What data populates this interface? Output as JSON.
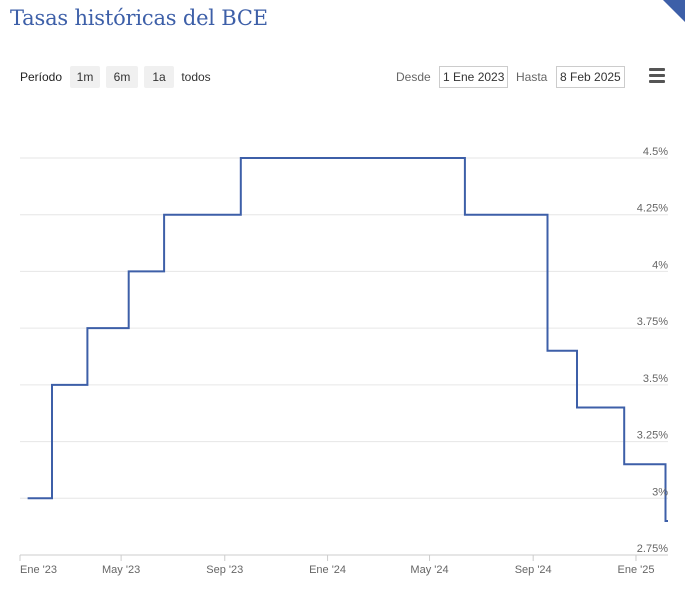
{
  "title": "Tasas históricas del BCE",
  "toolbar": {
    "period_label": "Período",
    "buttons": [
      "1m",
      "6m",
      "1a",
      "todos"
    ],
    "from_label": "Desde",
    "from_value": "1 Ene 2023",
    "to_label": "Hasta",
    "to_value": "8 Feb 2025"
  },
  "chart_data": {
    "type": "line",
    "step": "after",
    "title": "Tasas históricas del BCE",
    "xlabel": "",
    "ylabel": "",
    "xlim": [
      "2023-01-01",
      "2025-02-08"
    ],
    "ylim": [
      2.75,
      4.5
    ],
    "y_ticks": [
      {
        "value": 4.5,
        "label": "4.5%"
      },
      {
        "value": 4.25,
        "label": "4.25%"
      },
      {
        "value": 4.0,
        "label": "4%"
      },
      {
        "value": 3.75,
        "label": "3.75%"
      },
      {
        "value": 3.5,
        "label": "3.5%"
      },
      {
        "value": 3.25,
        "label": "3.25%"
      },
      {
        "value": 3.0,
        "label": "3%"
      },
      {
        "value": 2.75,
        "label": "2.75%"
      }
    ],
    "x_ticks": [
      {
        "date": "2023-01-01",
        "label": "Ene '23"
      },
      {
        "date": "2023-05-01",
        "label": "May '23"
      },
      {
        "date": "2023-09-01",
        "label": "Sep '23"
      },
      {
        "date": "2024-01-01",
        "label": "Ene '24"
      },
      {
        "date": "2024-05-01",
        "label": "May '24"
      },
      {
        "date": "2024-09-01",
        "label": "Sep '24"
      },
      {
        "date": "2025-01-01",
        "label": "Ene '25"
      }
    ],
    "grid": true,
    "color": "#3d5fa8",
    "series": [
      {
        "points": [
          {
            "date": "2023-01-10",
            "value": 3.0
          },
          {
            "date": "2023-02-08",
            "value": 3.5
          },
          {
            "date": "2023-03-22",
            "value": 3.75
          },
          {
            "date": "2023-05-10",
            "value": 4.0
          },
          {
            "date": "2023-06-21",
            "value": 4.25
          },
          {
            "date": "2023-09-20",
            "value": 4.5
          },
          {
            "date": "2024-06-12",
            "value": 4.25
          },
          {
            "date": "2024-09-18",
            "value": 3.65
          },
          {
            "date": "2024-10-23",
            "value": 3.4
          },
          {
            "date": "2024-12-18",
            "value": 3.15
          },
          {
            "date": "2025-02-05",
            "value": 2.9
          },
          {
            "date": "2025-02-08",
            "value": 2.9
          }
        ]
      }
    ]
  }
}
